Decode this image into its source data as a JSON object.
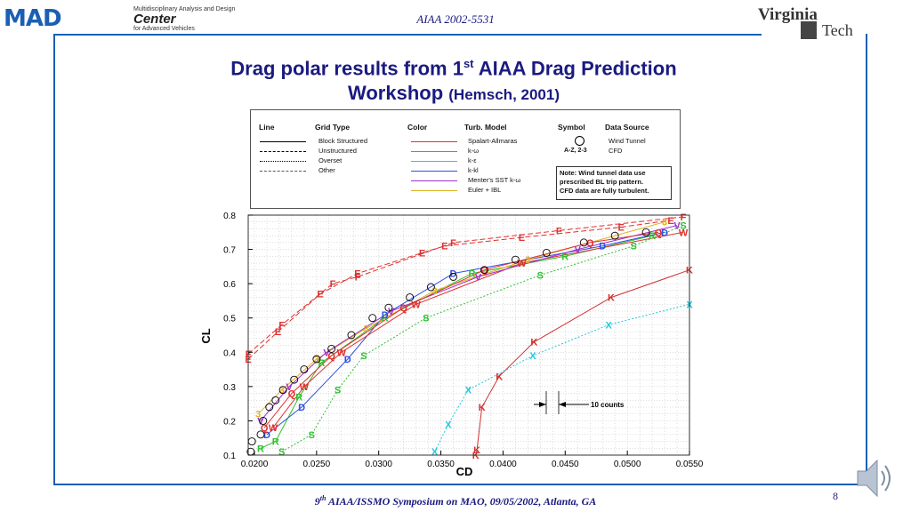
{
  "header": {
    "logo_left_mark": "MAD",
    "logo_left_line1": "Multidisciplinary Analysis and Design",
    "logo_left_line2": "Center",
    "logo_left_line3": "for Advanced Vehicles",
    "reference": "AIAA 2002-5531",
    "logo_right_line1": "Virginia",
    "logo_right_line2": "Tech"
  },
  "title": {
    "line1_pre": "Drag polar results from 1",
    "line1_sup": "st",
    "line1_post": " AIAA Drag Prediction",
    "line2_main": "Workshop ",
    "line2_small": "(Hemsch, 2001)"
  },
  "footer": {
    "text_sup": "th",
    "text_pre": "9",
    "text_post": " AIAA/ISSMO Symposium on MAO, 09/05/2002, Atlanta, GA",
    "page_number": "8"
  },
  "legend": {
    "headers": [
      "Line",
      "Grid Type",
      "Color",
      "Turb. Model",
      "Symbol",
      "Data Source"
    ],
    "grid_types": [
      "Block Structured",
      "Unstructured",
      "Overset",
      "Other"
    ],
    "turb_models": [
      "Spalart-Allmaras",
      "k-ω",
      "k-ε",
      "k-kl",
      "Menter's SST k-ω",
      "Euler + IBL"
    ],
    "turb_colors": [
      "#e03030",
      "#30c030",
      "#20c8e0",
      "#3050e0",
      "#a030d0",
      "#e0b020"
    ],
    "symbol_cfd": "A-Z, 2-3",
    "source_wind": "Wind Tunnel",
    "source_cfd": "CFD",
    "note_lines": [
      "Note:  Wind tunnel data use",
      "prescribed BL trip pattern.",
      "CFD data are fully turbulent."
    ]
  },
  "chart_data": {
    "type": "scatter",
    "title": "",
    "xlabel": "CD",
    "ylabel": "CL",
    "xlim": [
      0.0195,
      0.055
    ],
    "ylim": [
      0.1,
      0.8
    ],
    "x_ticks": [
      "0.0200",
      "0.0250",
      "0.0300",
      "0.0350",
      "0.0400",
      "0.0450",
      "0.0500",
      "0.0550"
    ],
    "x_tick_values": [
      0.02,
      0.025,
      0.03,
      0.035,
      0.04,
      0.045,
      0.05,
      0.055
    ],
    "y_ticks": [
      "0.1",
      "0.2",
      "0.3",
      "0.4",
      "0.5",
      "0.6",
      "0.7",
      "0.8"
    ],
    "y_tick_values": [
      0.1,
      0.2,
      0.3,
      0.4,
      0.5,
      0.6,
      0.7,
      0.8
    ],
    "grid": true,
    "annotation": "10 counts",
    "series": [
      {
        "label": "E",
        "color": "#e03030",
        "dash": "6,3",
        "points": [
          [
            0.0195,
            0.38
          ],
          [
            0.0219,
            0.46
          ],
          [
            0.0253,
            0.57
          ],
          [
            0.0283,
            0.63
          ],
          [
            0.0335,
            0.69
          ],
          [
            0.0353,
            0.71
          ],
          [
            0.0415,
            0.735
          ],
          [
            0.0495,
            0.765
          ],
          [
            0.0535,
            0.785
          ]
        ]
      },
      {
        "label": "F",
        "color": "#e03030",
        "dash": "6,3",
        "points": [
          [
            0.0195,
            0.395
          ],
          [
            0.0222,
            0.48
          ],
          [
            0.0263,
            0.6
          ],
          [
            0.0283,
            0.62
          ],
          [
            0.036,
            0.72
          ],
          [
            0.0445,
            0.755
          ],
          [
            0.0545,
            0.795
          ]
        ]
      },
      {
        "label": "K",
        "color": "#d03030",
        "dash": "",
        "points": [
          [
            0.0378,
            0.1
          ],
          [
            0.0379,
            0.115
          ],
          [
            0.0383,
            0.24
          ],
          [
            0.0397,
            0.33
          ],
          [
            0.0425,
            0.43
          ],
          [
            0.0487,
            0.56
          ],
          [
            0.055,
            0.64
          ]
        ]
      },
      {
        "label": "X",
        "color": "#20c8e0",
        "dash": "2,2",
        "points": [
          [
            0.0345,
            0.11
          ],
          [
            0.0356,
            0.19
          ],
          [
            0.0372,
            0.29
          ],
          [
            0.0424,
            0.39
          ],
          [
            0.0485,
            0.48
          ],
          [
            0.055,
            0.54
          ]
        ]
      },
      {
        "label": "S",
        "color": "#30c030",
        "dash": "2,2",
        "points": [
          [
            0.0222,
            0.11
          ],
          [
            0.0246,
            0.16
          ],
          [
            0.0267,
            0.29
          ],
          [
            0.0288,
            0.39
          ],
          [
            0.0338,
            0.5
          ],
          [
            0.043,
            0.625
          ],
          [
            0.0505,
            0.71
          ],
          [
            0.0545,
            0.77
          ]
        ]
      },
      {
        "label": "R",
        "color": "#30c030",
        "dash": "",
        "points": [
          [
            0.0205,
            0.12
          ],
          [
            0.0217,
            0.14
          ],
          [
            0.0236,
            0.27
          ],
          [
            0.0254,
            0.37
          ],
          [
            0.0305,
            0.5
          ],
          [
            0.0375,
            0.63
          ],
          [
            0.045,
            0.68
          ],
          [
            0.052,
            0.74
          ]
        ]
      },
      {
        "label": "D",
        "color": "#3050e0",
        "dash": "",
        "points": [
          [
            0.021,
            0.16
          ],
          [
            0.0238,
            0.24
          ],
          [
            0.0275,
            0.38
          ],
          [
            0.0305,
            0.51
          ],
          [
            0.036,
            0.63
          ],
          [
            0.048,
            0.71
          ],
          [
            0.053,
            0.75
          ]
        ]
      },
      {
        "label": "W",
        "color": "#e03030",
        "dash": "",
        "points": [
          [
            0.0215,
            0.18
          ],
          [
            0.024,
            0.3
          ],
          [
            0.027,
            0.4
          ],
          [
            0.033,
            0.54
          ],
          [
            0.0415,
            0.66
          ],
          [
            0.0545,
            0.75
          ]
        ]
      },
      {
        "label": "3",
        "color": "#e0b020",
        "dash": "",
        "points": [
          [
            0.0203,
            0.22
          ],
          [
            0.0222,
            0.29
          ],
          [
            0.025,
            0.38
          ],
          [
            0.029,
            0.47
          ],
          [
            0.0345,
            0.58
          ],
          [
            0.042,
            0.67
          ],
          [
            0.053,
            0.78
          ]
        ]
      },
      {
        "label": "V",
        "color": "#a030d0",
        "dash": "",
        "points": [
          [
            0.0205,
            0.2
          ],
          [
            0.0228,
            0.3
          ],
          [
            0.0258,
            0.4
          ],
          [
            0.031,
            0.52
          ],
          [
            0.038,
            0.62
          ],
          [
            0.046,
            0.7
          ],
          [
            0.054,
            0.77
          ]
        ]
      },
      {
        "label": "Q",
        "color": "#e03030",
        "dash": "",
        "points": [
          [
            0.0208,
            0.18
          ],
          [
            0.023,
            0.28
          ],
          [
            0.0262,
            0.39
          ],
          [
            0.032,
            0.53
          ],
          [
            0.0385,
            0.64
          ],
          [
            0.047,
            0.72
          ],
          [
            0.0525,
            0.75
          ]
        ]
      }
    ],
    "wind_tunnel": {
      "label": "Wind Tunnel",
      "points": [
        [
          0.0197,
          0.11
        ],
        [
          0.0198,
          0.14
        ],
        [
          0.0205,
          0.16
        ],
        [
          0.0207,
          0.2
        ],
        [
          0.0212,
          0.24
        ],
        [
          0.0217,
          0.26
        ],
        [
          0.0223,
          0.29
        ],
        [
          0.0232,
          0.32
        ],
        [
          0.024,
          0.35
        ],
        [
          0.025,
          0.38
        ],
        [
          0.0262,
          0.41
        ],
        [
          0.0278,
          0.45
        ],
        [
          0.0295,
          0.5
        ],
        [
          0.0308,
          0.53
        ],
        [
          0.0325,
          0.56
        ],
        [
          0.0342,
          0.59
        ],
        [
          0.036,
          0.62
        ],
        [
          0.0385,
          0.64
        ],
        [
          0.041,
          0.67
        ],
        [
          0.0435,
          0.69
        ],
        [
          0.0465,
          0.72
        ],
        [
          0.049,
          0.74
        ],
        [
          0.0515,
          0.75
        ]
      ]
    }
  }
}
